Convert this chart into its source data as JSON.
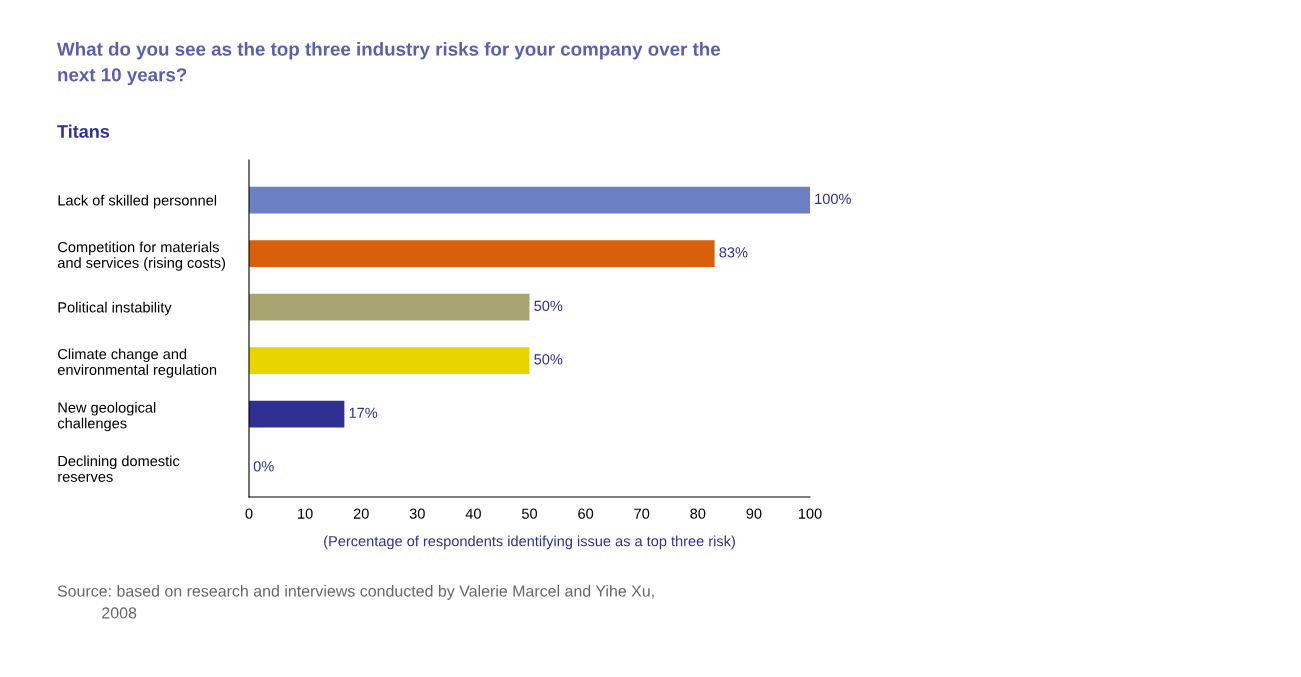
{
  "chart_data": {
    "type": "bar",
    "orientation": "horizontal",
    "title": "What do you see as the top three industry risks for your company over the\nnext 10 years?",
    "subtitle": "Titans",
    "categories": [
      "Lack of skilled personnel",
      "Competition for materials\nand services (rising costs)",
      "Political instability",
      "Climate change and\nenvironmental regulation",
      "New geological\nchallenges",
      "Declining domestic\nreserves"
    ],
    "values": [
      100,
      83,
      50,
      50,
      17,
      0
    ],
    "colors": [
      "#6b80c4",
      "#d9600a",
      "#a8a472",
      "#e8d400",
      "#2e3192",
      "#2e3192"
    ],
    "value_labels": [
      "100%",
      "83%",
      "50%",
      "50%",
      "17%",
      "0%"
    ],
    "xlim": [
      0,
      100
    ],
    "xticks": [
      0,
      10,
      20,
      30,
      40,
      50,
      60,
      70,
      80,
      90,
      100
    ],
    "xlabel": "(Percentage of respondents identifying issue as a top three risk)",
    "annotations": [
      "Source: based on research and interviews conducted by Valerie Marcel and Yihe Xu,\n          2008"
    ],
    "grid": false,
    "legend": false
  }
}
